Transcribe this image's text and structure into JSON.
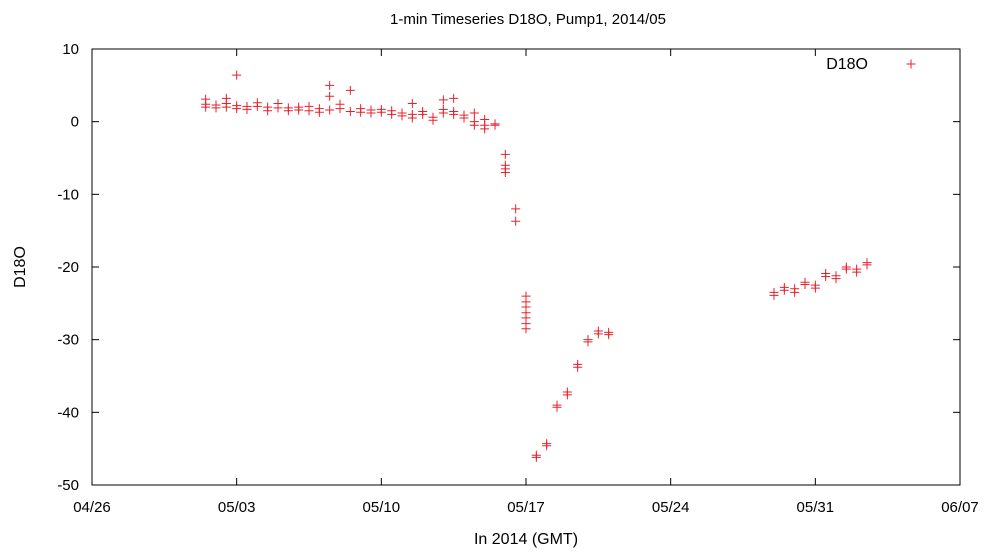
{
  "chart_data": {
    "type": "scatter",
    "title": "1-min Timeseries D18O, Pump1, 2014/05",
    "xlabel": "In 2014 (GMT)",
    "ylabel": "D18O",
    "xlim": [
      "2014-04-26",
      "2014-06-07"
    ],
    "ylim": [
      -50,
      10
    ],
    "x_ticks": [
      "04/26",
      "05/03",
      "05/10",
      "05/17",
      "05/24",
      "05/31",
      "06/07"
    ],
    "y_ticks": [
      "10",
      "0",
      "-10",
      "-20",
      "-30",
      "-40",
      "-50"
    ],
    "grid": false,
    "legend_position": "top-right",
    "marker": "plus",
    "color": "#e8202a",
    "series": [
      {
        "name": "D18O",
        "points": [
          [
            "2014-05-01T12:00",
            2.0
          ],
          [
            "2014-05-01T12:00",
            2.4
          ],
          [
            "2014-05-01T12:00",
            3.1
          ],
          [
            "2014-05-02T00:00",
            1.9
          ],
          [
            "2014-05-02T00:00",
            2.3
          ],
          [
            "2014-05-02T12:00",
            2.0
          ],
          [
            "2014-05-02T12:00",
            2.5
          ],
          [
            "2014-05-02T12:00",
            3.2
          ],
          [
            "2014-05-03T00:00",
            1.8
          ],
          [
            "2014-05-03T00:00",
            2.2
          ],
          [
            "2014-05-03T00:00",
            6.4
          ],
          [
            "2014-05-03T12:00",
            1.7
          ],
          [
            "2014-05-03T12:00",
            2.1
          ],
          [
            "2014-05-04T00:00",
            2.1
          ],
          [
            "2014-05-04T00:00",
            2.6
          ],
          [
            "2014-05-04T12:00",
            1.5
          ],
          [
            "2014-05-04T12:00",
            2.0
          ],
          [
            "2014-05-05T00:00",
            1.9
          ],
          [
            "2014-05-05T00:00",
            2.5
          ],
          [
            "2014-05-05T12:00",
            1.5
          ],
          [
            "2014-05-05T12:00",
            1.9
          ],
          [
            "2014-05-06T00:00",
            1.6
          ],
          [
            "2014-05-06T00:00",
            2.0
          ],
          [
            "2014-05-06T12:00",
            1.5
          ],
          [
            "2014-05-06T12:00",
            2.1
          ],
          [
            "2014-05-07T00:00",
            1.3
          ],
          [
            "2014-05-07T00:00",
            1.8
          ],
          [
            "2014-05-07T12:00",
            1.6
          ],
          [
            "2014-05-07T12:00",
            3.5
          ],
          [
            "2014-05-07T12:00",
            5.0
          ],
          [
            "2014-05-08T00:00",
            1.8
          ],
          [
            "2014-05-08T00:00",
            2.4
          ],
          [
            "2014-05-08T12:00",
            1.4
          ],
          [
            "2014-05-08T12:00",
            4.3
          ],
          [
            "2014-05-09T00:00",
            1.3
          ],
          [
            "2014-05-09T00:00",
            1.8
          ],
          [
            "2014-05-09T12:00",
            1.2
          ],
          [
            "2014-05-09T12:00",
            1.6
          ],
          [
            "2014-05-10T00:00",
            1.3
          ],
          [
            "2014-05-10T00:00",
            1.7
          ],
          [
            "2014-05-10T12:00",
            1.0
          ],
          [
            "2014-05-10T12:00",
            1.5
          ],
          [
            "2014-05-11T00:00",
            0.8
          ],
          [
            "2014-05-11T00:00",
            1.2
          ],
          [
            "2014-05-11T12:00",
            0.5
          ],
          [
            "2014-05-11T12:00",
            1.0
          ],
          [
            "2014-05-11T12:00",
            2.5
          ],
          [
            "2014-05-12T00:00",
            1.0
          ],
          [
            "2014-05-12T00:00",
            1.4
          ],
          [
            "2014-05-12T12:00",
            0.2
          ],
          [
            "2014-05-12T12:00",
            0.6
          ],
          [
            "2014-05-13T00:00",
            1.2
          ],
          [
            "2014-05-13T00:00",
            1.7
          ],
          [
            "2014-05-13T00:00",
            3.0
          ],
          [
            "2014-05-13T12:00",
            1.0
          ],
          [
            "2014-05-13T12:00",
            1.4
          ],
          [
            "2014-05-13T12:00",
            3.2
          ],
          [
            "2014-05-14T00:00",
            0.5
          ],
          [
            "2014-05-14T00:00",
            0.9
          ],
          [
            "2014-05-14T12:00",
            -0.5
          ],
          [
            "2014-05-14T12:00",
            0.0
          ],
          [
            "2014-05-14T12:00",
            1.2
          ],
          [
            "2014-05-15T00:00",
            -0.5
          ],
          [
            "2014-05-15T00:00",
            -1.0
          ],
          [
            "2014-05-15T00:00",
            0.3
          ],
          [
            "2014-05-15T12:00",
            -0.3
          ],
          [
            "2014-05-15T12:00",
            -0.5
          ],
          [
            "2014-05-16T00:00",
            -4.5
          ],
          [
            "2014-05-16T00:00",
            -6.0
          ],
          [
            "2014-05-16T00:00",
            -6.5
          ],
          [
            "2014-05-16T00:00",
            -7.0
          ],
          [
            "2014-05-16T12:00",
            -12.0
          ],
          [
            "2014-05-16T12:00",
            -13.7
          ],
          [
            "2014-05-17T00:00",
            -24.0
          ],
          [
            "2014-05-17T00:00",
            -24.8
          ],
          [
            "2014-05-17T00:00",
            -25.5
          ],
          [
            "2014-05-17T00:00",
            -26.3
          ],
          [
            "2014-05-17T00:00",
            -27.0
          ],
          [
            "2014-05-17T00:00",
            -27.8
          ],
          [
            "2014-05-17T00:00",
            -28.5
          ],
          [
            "2014-05-17T12:00",
            -45.9
          ],
          [
            "2014-05-17T12:00",
            -46.2
          ],
          [
            "2014-05-18T00:00",
            -44.3
          ],
          [
            "2014-05-18T00:00",
            -44.6
          ],
          [
            "2014-05-18T12:00",
            -39.0
          ],
          [
            "2014-05-18T12:00",
            -39.3
          ],
          [
            "2014-05-19T00:00",
            -37.2
          ],
          [
            "2014-05-19T00:00",
            -37.6
          ],
          [
            "2014-05-19T12:00",
            -33.4
          ],
          [
            "2014-05-19T12:00",
            -33.8
          ],
          [
            "2014-05-20T00:00",
            -30.0
          ],
          [
            "2014-05-20T00:00",
            -30.3
          ],
          [
            "2014-05-20T12:00",
            -28.8
          ],
          [
            "2014-05-20T12:00",
            -29.2
          ],
          [
            "2014-05-21T00:00",
            -29.0
          ],
          [
            "2014-05-21T00:00",
            -29.3
          ],
          [
            "2014-05-29T00:00",
            -23.5
          ],
          [
            "2014-05-29T00:00",
            -23.9
          ],
          [
            "2014-05-29T12:00",
            -22.8
          ],
          [
            "2014-05-29T12:00",
            -23.2
          ],
          [
            "2014-05-30T00:00",
            -23.0
          ],
          [
            "2014-05-30T00:00",
            -23.5
          ],
          [
            "2014-05-30T12:00",
            -22.1
          ],
          [
            "2014-05-30T12:00",
            -22.4
          ],
          [
            "2014-05-31T00:00",
            -22.5
          ],
          [
            "2014-05-31T00:00",
            -22.9
          ],
          [
            "2014-05-31T12:00",
            -20.9
          ],
          [
            "2014-05-31T12:00",
            -21.3
          ],
          [
            "2014-06-01T00:00",
            -21.2
          ],
          [
            "2014-06-01T00:00",
            -21.6
          ],
          [
            "2014-06-01T12:00",
            -20.0
          ],
          [
            "2014-06-01T12:00",
            -20.3
          ],
          [
            "2014-06-02T00:00",
            -20.3
          ],
          [
            "2014-06-02T00:00",
            -20.7
          ],
          [
            "2014-06-02T12:00",
            -19.4
          ],
          [
            "2014-06-02T12:00",
            -19.7
          ]
        ]
      }
    ]
  }
}
